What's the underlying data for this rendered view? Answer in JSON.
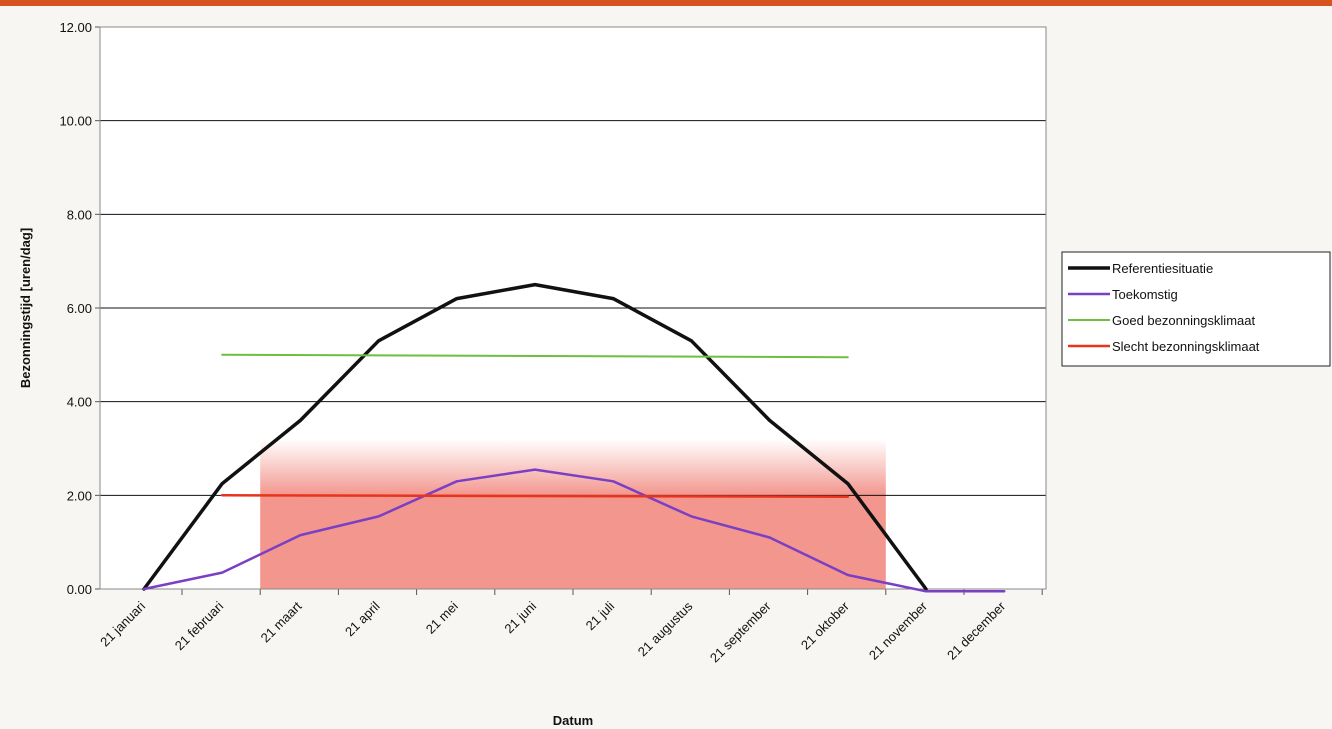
{
  "chart_data": {
    "type": "line",
    "title": "",
    "xlabel": "Datum",
    "ylabel": "Bezonningstijd [uren/dag]",
    "categories": [
      "21 januari",
      "21 februari",
      "21 maart",
      "21 april",
      "21 mei",
      "21 juni",
      "21 juli",
      "21 augustus",
      "21 september",
      "21 oktober",
      "21 november",
      "21 december"
    ],
    "ylim": [
      0,
      12
    ],
    "yticks": [
      "0.00",
      "2.00",
      "4.00",
      "6.00",
      "8.00",
      "10.00",
      "12.00"
    ],
    "grid": true,
    "legend_position": "right",
    "shaded_region": {
      "from_category": "21 februari",
      "to_category": "21 oktober",
      "y_solid": [
        0,
        2
      ],
      "y_fade_top": 3.2,
      "color": "#f28b82"
    },
    "series": [
      {
        "name": "Referentiesituatie",
        "color": "#111111",
        "points": [
          [
            0,
            0
          ],
          [
            1,
            2.25
          ],
          [
            2,
            3.6
          ],
          [
            3,
            5.3
          ],
          [
            4,
            6.2
          ],
          [
            5,
            6.5
          ],
          [
            6,
            6.2
          ],
          [
            7,
            5.3
          ],
          [
            8,
            3.6
          ],
          [
            9,
            2.25
          ],
          [
            10,
            0
          ]
        ]
      },
      {
        "name": "Toekomstig",
        "color": "#7b3fc4",
        "points": [
          [
            0,
            0
          ],
          [
            1,
            0.35
          ],
          [
            2,
            1.15
          ],
          [
            3,
            1.55
          ],
          [
            4,
            2.3
          ],
          [
            5,
            2.55
          ],
          [
            6,
            2.3
          ],
          [
            7,
            1.55
          ],
          [
            8,
            1.1
          ],
          [
            9,
            0.3
          ],
          [
            10,
            -0.05
          ],
          [
            11,
            -0.05
          ]
        ]
      },
      {
        "name": "Goed bezonningsklimaat",
        "color": "#6cbf3f",
        "points": [
          [
            1,
            5.0
          ],
          [
            9,
            4.95
          ]
        ]
      },
      {
        "name": "Slecht bezonningsklimaat",
        "color": "#e8341c",
        "points": [
          [
            1,
            2.0
          ],
          [
            9,
            1.97
          ]
        ]
      }
    ]
  }
}
